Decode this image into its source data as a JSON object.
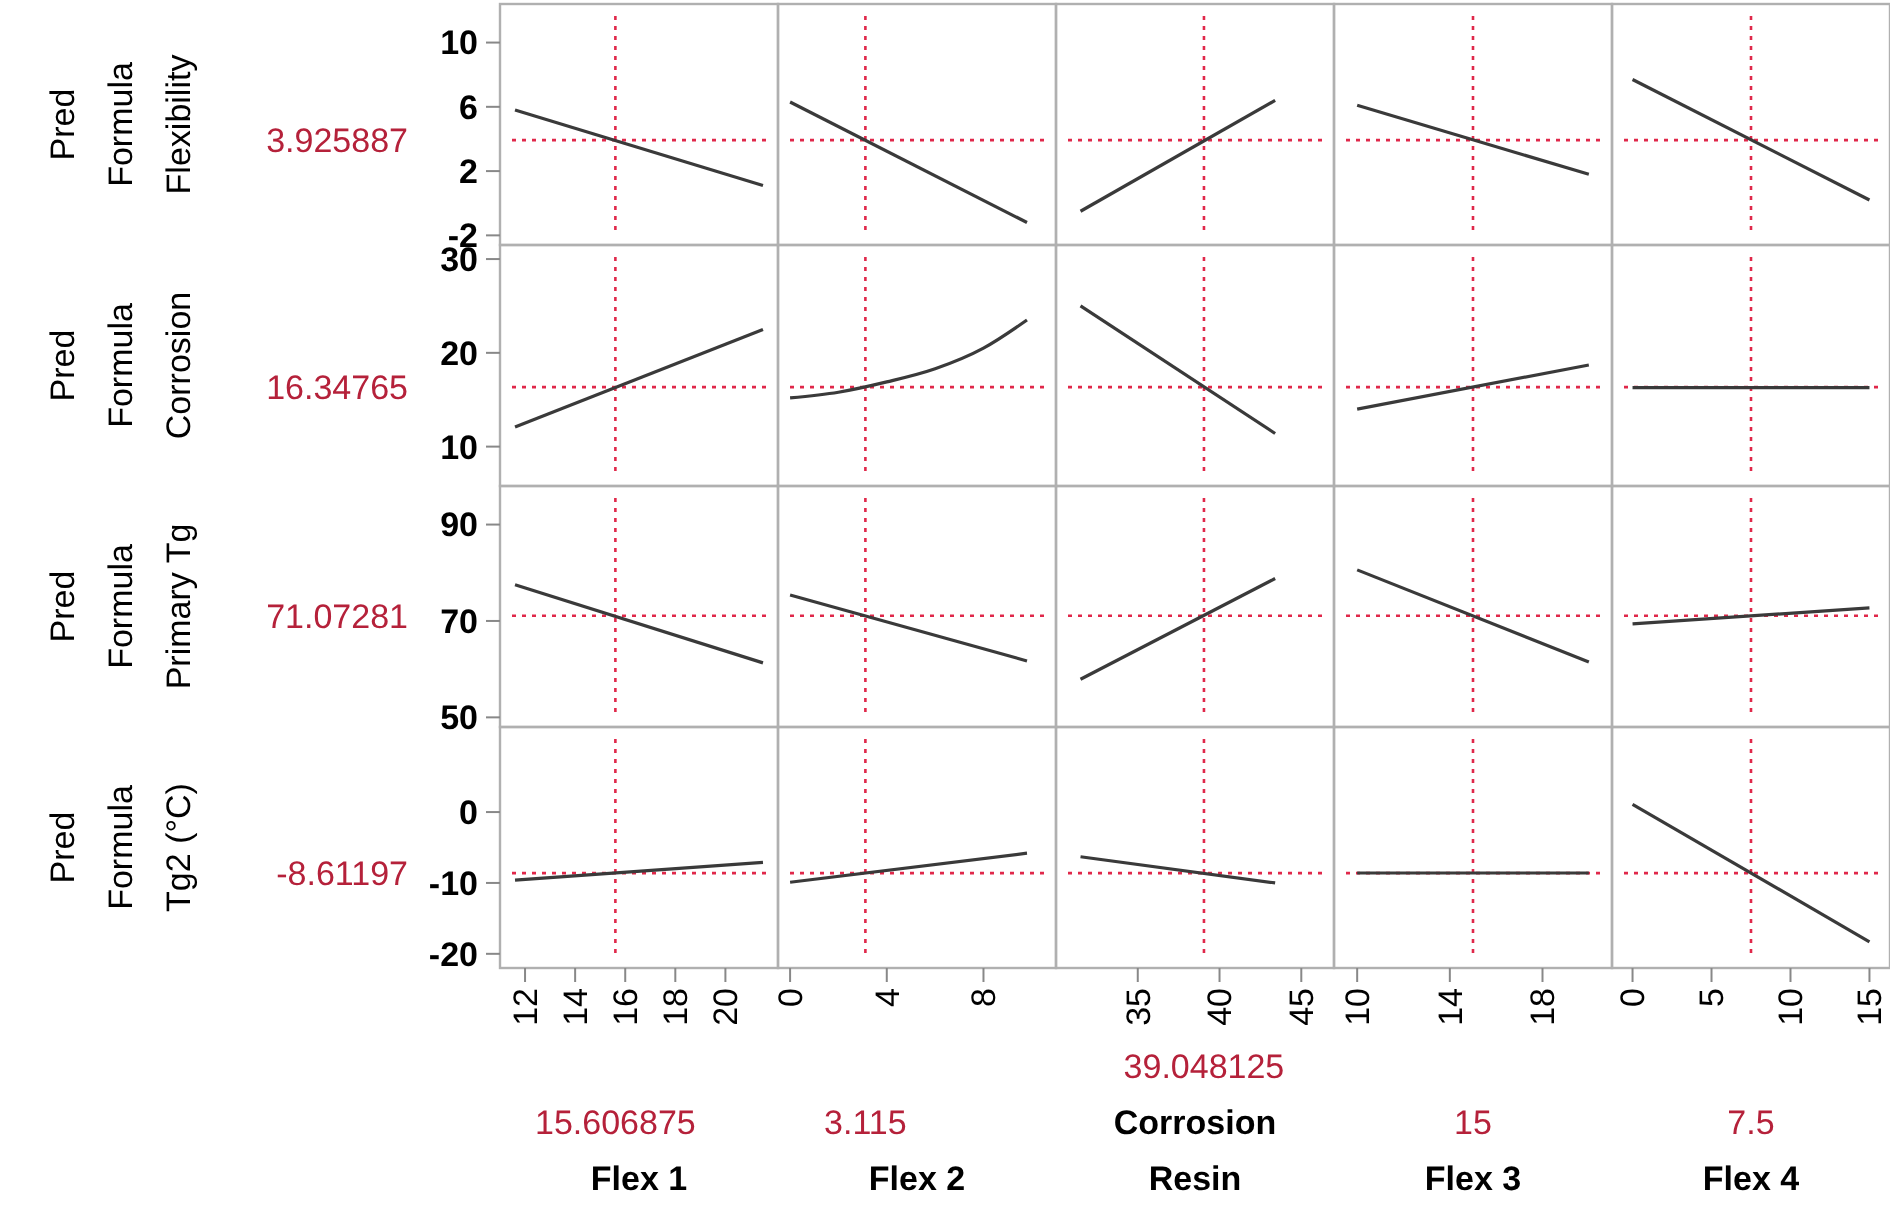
{
  "chart_data": [
    {
      "type": "line",
      "ylabel": "Pred Formula Flexibility",
      "tick_labels": "y",
      "annotations": [
        "3.925887"
      ],
      "x": [
        11.6,
        21.5
      ],
      "series": [
        {
          "color": "#3a3a3a",
          "values": [
            5.8,
            1.1
          ]
        }
      ],
      "xlim": [
        11,
        22.1
      ],
      "ylim": [
        -2.6,
        12.4
      ],
      "yticks": [
        -2,
        2,
        6,
        10
      ],
      "ref_lines": [
        {
          "axis": "x",
          "value": 15.606875,
          "color": "#e0284a",
          "line_style": "dotted"
        },
        {
          "axis": "y",
          "value": 3.925887,
          "color": "#e0284a",
          "line_style": "dotted"
        }
      ]
    },
    {
      "type": "line",
      "tick_labels": false,
      "x": [
        0,
        9.8
      ],
      "series": [
        {
          "color": "#3a3a3a",
          "values": [
            6.3,
            -1.2
          ]
        }
      ],
      "xlim": [
        -0.5,
        11
      ],
      "ylim": [
        -2.6,
        12.4
      ],
      "ref_lines": [
        {
          "axis": "x",
          "value": 3.115,
          "color": "#e0284a",
          "line_style": "dotted"
        },
        {
          "axis": "y",
          "value": 3.925887,
          "color": "#e0284a",
          "line_style": "dotted"
        }
      ]
    },
    {
      "type": "line",
      "tick_labels": false,
      "x": [
        31.5,
        43.4
      ],
      "series": [
        {
          "color": "#3a3a3a",
          "values": [
            -0.5,
            6.4
          ]
        }
      ],
      "xlim": [
        30,
        47
      ],
      "ylim": [
        -2.6,
        12.4
      ],
      "ref_lines": [
        {
          "axis": "x",
          "value": 39.048125,
          "color": "#e0284a",
          "line_style": "dotted"
        },
        {
          "axis": "y",
          "value": 3.925887,
          "color": "#e0284a",
          "line_style": "dotted"
        }
      ]
    },
    {
      "type": "line",
      "tick_labels": false,
      "x": [
        10,
        20
      ],
      "series": [
        {
          "color": "#3a3a3a",
          "values": [
            6.1,
            1.8
          ]
        }
      ],
      "xlim": [
        9,
        21
      ],
      "ylim": [
        -2.6,
        12.4
      ],
      "ref_lines": [
        {
          "axis": "x",
          "value": 15,
          "color": "#e0284a",
          "line_style": "dotted"
        },
        {
          "axis": "y",
          "value": 3.925887,
          "color": "#e0284a",
          "line_style": "dotted"
        }
      ]
    },
    {
      "type": "line",
      "tick_labels": false,
      "x": [
        0,
        15
      ],
      "series": [
        {
          "color": "#3a3a3a",
          "values": [
            7.7,
            0.2
          ]
        }
      ],
      "xlim": [
        -1.3,
        16.3
      ],
      "ylim": [
        -2.6,
        12.4
      ],
      "ref_lines": [
        {
          "axis": "x",
          "value": 7.5,
          "color": "#e0284a",
          "line_style": "dotted"
        },
        {
          "axis": "y",
          "value": 3.925887,
          "color": "#e0284a",
          "line_style": "dotted"
        }
      ]
    },
    {
      "type": "line",
      "ylabel": "Pred Formula Corrosion",
      "tick_labels": "y",
      "annotations": [
        "16.34765"
      ],
      "x": [
        11.6,
        21.5
      ],
      "series": [
        {
          "color": "#3a3a3a",
          "values": [
            12.1,
            22.5
          ]
        }
      ],
      "xlim": [
        11,
        22.1
      ],
      "ylim": [
        5.8,
        31.5
      ],
      "yticks": [
        10,
        20,
        30
      ],
      "ref_lines": [
        {
          "axis": "x",
          "value": 15.606875,
          "color": "#e0284a",
          "line_style": "dotted"
        },
        {
          "axis": "y",
          "value": 16.34765,
          "color": "#e0284a",
          "line_style": "dotted"
        }
      ]
    },
    {
      "type": "line",
      "tick_labels": false,
      "x": [
        0,
        2,
        4,
        6,
        8,
        9.8
      ],
      "series": [
        {
          "color": "#3a3a3a",
          "values": [
            15.2,
            15.8,
            16.9,
            18.3,
            20.5,
            23.5
          ]
        }
      ],
      "xlim": [
        -0.5,
        11
      ],
      "ylim": [
        5.8,
        31.5
      ],
      "ref_lines": [
        {
          "axis": "x",
          "value": 3.115,
          "color": "#e0284a",
          "line_style": "dotted"
        },
        {
          "axis": "y",
          "value": 16.34765,
          "color": "#e0284a",
          "line_style": "dotted"
        }
      ]
    },
    {
      "type": "line",
      "tick_labels": false,
      "x": [
        31.5,
        43.4
      ],
      "series": [
        {
          "color": "#3a3a3a",
          "values": [
            25,
            11.4
          ]
        }
      ],
      "xlim": [
        30,
        47
      ],
      "ylim": [
        5.8,
        31.5
      ],
      "ref_lines": [
        {
          "axis": "x",
          "value": 39.048125,
          "color": "#e0284a",
          "line_style": "dotted"
        },
        {
          "axis": "y",
          "value": 16.34765,
          "color": "#e0284a",
          "line_style": "dotted"
        }
      ]
    },
    {
      "type": "line",
      "tick_labels": false,
      "x": [
        10,
        20
      ],
      "series": [
        {
          "color": "#3a3a3a",
          "values": [
            14,
            18.7
          ]
        }
      ],
      "xlim": [
        9,
        21
      ],
      "ylim": [
        5.8,
        31.5
      ],
      "ref_lines": [
        {
          "axis": "x",
          "value": 15,
          "color": "#e0284a",
          "line_style": "dotted"
        },
        {
          "axis": "y",
          "value": 16.34765,
          "color": "#e0284a",
          "line_style": "dotted"
        }
      ]
    },
    {
      "type": "line",
      "tick_labels": false,
      "x": [
        0,
        15
      ],
      "series": [
        {
          "color": "#3a3a3a",
          "values": [
            16.3,
            16.3
          ]
        }
      ],
      "xlim": [
        -1.3,
        16.3
      ],
      "ylim": [
        5.8,
        31.5
      ],
      "ref_lines": [
        {
          "axis": "x",
          "value": 7.5,
          "color": "#e0284a",
          "line_style": "dotted"
        },
        {
          "axis": "y",
          "value": 16.34765,
          "color": "#e0284a",
          "line_style": "dotted"
        }
      ]
    },
    {
      "type": "line",
      "ylabel": "Pred Formula Primary Tg",
      "tick_labels": "y",
      "annotations": [
        "71.07281"
      ],
      "x": [
        11.6,
        21.5
      ],
      "series": [
        {
          "color": "#3a3a3a",
          "values": [
            77.5,
            61.3
          ]
        }
      ],
      "xlim": [
        11,
        22.1
      ],
      "ylim": [
        48,
        98
      ],
      "yticks": [
        50,
        70,
        90
      ],
      "ref_lines": [
        {
          "axis": "x",
          "value": 15.606875,
          "color": "#e0284a",
          "line_style": "dotted"
        },
        {
          "axis": "y",
          "value": 71.07281,
          "color": "#e0284a",
          "line_style": "dotted"
        }
      ]
    },
    {
      "type": "line",
      "tick_labels": false,
      "x": [
        0,
        9.8
      ],
      "series": [
        {
          "color": "#3a3a3a",
          "values": [
            75.4,
            61.7
          ]
        }
      ],
      "xlim": [
        -0.5,
        11
      ],
      "ylim": [
        48,
        98
      ],
      "ref_lines": [
        {
          "axis": "x",
          "value": 3.115,
          "color": "#e0284a",
          "line_style": "dotted"
        },
        {
          "axis": "y",
          "value": 71.07281,
          "color": "#e0284a",
          "line_style": "dotted"
        }
      ]
    },
    {
      "type": "line",
      "tick_labels": false,
      "x": [
        31.5,
        43.4
      ],
      "series": [
        {
          "color": "#3a3a3a",
          "values": [
            57.9,
            78.8
          ]
        }
      ],
      "xlim": [
        30,
        47
      ],
      "ylim": [
        48,
        98
      ],
      "ref_lines": [
        {
          "axis": "x",
          "value": 39.048125,
          "color": "#e0284a",
          "line_style": "dotted"
        },
        {
          "axis": "y",
          "value": 71.07281,
          "color": "#e0284a",
          "line_style": "dotted"
        }
      ]
    },
    {
      "type": "line",
      "tick_labels": false,
      "x": [
        10,
        20
      ],
      "series": [
        {
          "color": "#3a3a3a",
          "values": [
            80.6,
            61.5
          ]
        }
      ],
      "xlim": [
        9,
        21
      ],
      "ylim": [
        48,
        98
      ],
      "ref_lines": [
        {
          "axis": "x",
          "value": 15,
          "color": "#e0284a",
          "line_style": "dotted"
        },
        {
          "axis": "y",
          "value": 71.07281,
          "color": "#e0284a",
          "line_style": "dotted"
        }
      ]
    },
    {
      "type": "line",
      "tick_labels": false,
      "x": [
        0,
        15
      ],
      "series": [
        {
          "color": "#3a3a3a",
          "values": [
            69.4,
            72.7
          ]
        }
      ],
      "xlim": [
        -1.3,
        16.3
      ],
      "ylim": [
        48,
        98
      ],
      "ref_lines": [
        {
          "axis": "x",
          "value": 7.5,
          "color": "#e0284a",
          "line_style": "dotted"
        },
        {
          "axis": "y",
          "value": 71.07281,
          "color": "#e0284a",
          "line_style": "dotted"
        }
      ]
    },
    {
      "type": "line",
      "ylabel": "Pred Formula Tg2 (°C)",
      "xlabel": "Flex 1",
      "annotations": [
        "-8.61197",
        "15.606875"
      ],
      "x": [
        11.6,
        21.5
      ],
      "series": [
        {
          "color": "#3a3a3a",
          "values": [
            -9.6,
            -7.1
          ]
        }
      ],
      "xlim": [
        11,
        22.1
      ],
      "xticks": [
        12,
        14,
        16,
        18,
        20
      ],
      "ylim": [
        -22,
        12
      ],
      "yticks": [
        -20,
        -10,
        0
      ],
      "ref_lines": [
        {
          "axis": "x",
          "value": 15.606875,
          "color": "#e0284a",
          "line_style": "dotted"
        },
        {
          "axis": "y",
          "value": -8.61197,
          "color": "#e0284a",
          "line_style": "dotted"
        }
      ]
    },
    {
      "type": "line",
      "xlabel": "Flex 2",
      "tick_labels": "x",
      "annotations": [
        "3.115"
      ],
      "x": [
        0,
        9.8
      ],
      "series": [
        {
          "color": "#3a3a3a",
          "values": [
            -9.9,
            -5.8
          ]
        }
      ],
      "xlim": [
        -0.5,
        11
      ],
      "xticks": [
        0,
        4,
        8
      ],
      "ylim": [
        -22,
        12
      ],
      "ref_lines": [
        {
          "axis": "x",
          "value": 3.115,
          "color": "#e0284a",
          "line_style": "dotted"
        },
        {
          "axis": "y",
          "value": -8.61197,
          "color": "#e0284a",
          "line_style": "dotted"
        }
      ]
    },
    {
      "type": "line",
      "xlabel": "Corrosion Resin",
      "tick_labels": "x",
      "annotations": [
        "39.048125"
      ],
      "x": [
        31.5,
        43.4
      ],
      "series": [
        {
          "color": "#3a3a3a",
          "values": [
            -6.3,
            -10
          ]
        }
      ],
      "xlim": [
        30,
        47
      ],
      "xticks": [
        35,
        40,
        45
      ],
      "ylim": [
        -22,
        12
      ],
      "ref_lines": [
        {
          "axis": "x",
          "value": 39.048125,
          "color": "#e0284a",
          "line_style": "dotted"
        },
        {
          "axis": "y",
          "value": -8.61197,
          "color": "#e0284a",
          "line_style": "dotted"
        }
      ]
    },
    {
      "type": "line",
      "xlabel": "Flex 3",
      "tick_labels": "x",
      "annotations": [
        "15"
      ],
      "x": [
        10,
        20
      ],
      "series": [
        {
          "color": "#3a3a3a",
          "values": [
            -8.6,
            -8.6
          ]
        }
      ],
      "xlim": [
        9,
        21
      ],
      "xticks": [
        10,
        14,
        18
      ],
      "ylim": [
        -22,
        12
      ],
      "ref_lines": [
        {
          "axis": "x",
          "value": 15,
          "color": "#e0284a",
          "line_style": "dotted"
        },
        {
          "axis": "y",
          "value": -8.61197,
          "color": "#e0284a",
          "line_style": "dotted"
        }
      ]
    },
    {
      "type": "line",
      "xlabel": "Flex 4",
      "tick_labels": "x",
      "annotations": [
        "7.5"
      ],
      "x": [
        0,
        15
      ],
      "series": [
        {
          "color": "#3a3a3a",
          "values": [
            1.1,
            -18.3
          ]
        }
      ],
      "xlim": [
        -1.3,
        16.3
      ],
      "xticks": [
        0,
        5,
        10,
        15
      ],
      "ylim": [
        -22,
        12
      ],
      "ref_lines": [
        {
          "axis": "x",
          "value": 7.5,
          "color": "#e0284a",
          "line_style": "dotted"
        },
        {
          "axis": "y",
          "value": -8.61197,
          "color": "#e0284a",
          "line_style": "dotted"
        }
      ]
    }
  ]
}
